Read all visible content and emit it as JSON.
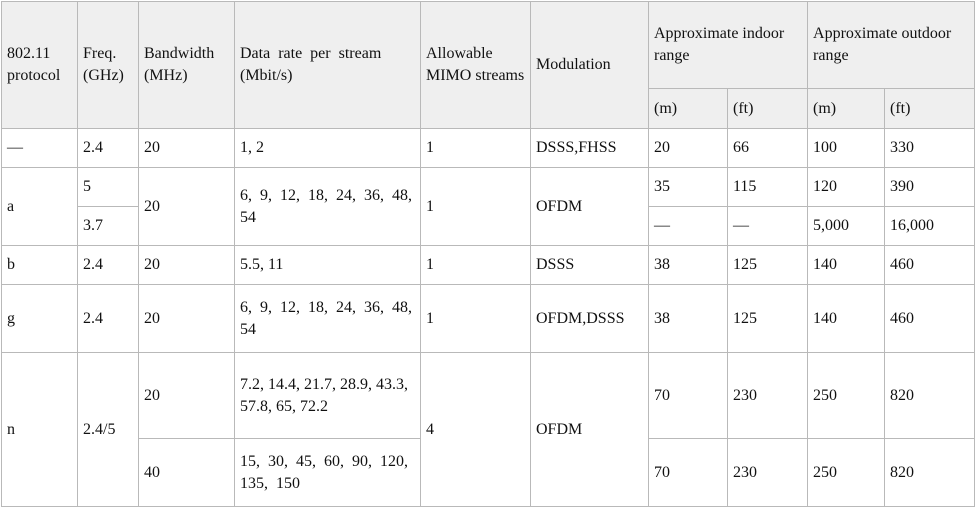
{
  "headers": {
    "protocol": "802.11 protocol",
    "freq": "Freq. (GHz)",
    "bandwidth": "Bandwidth (MHz)",
    "data_rate": "Data rate per stream (Mbit/s)",
    "mimo": "Allowable MIMO streams",
    "modulation": "Modulation",
    "indoor": "Approximate indoor range",
    "outdoor": "Approximate outdoor range",
    "unit_m": "(m)",
    "unit_ft": "(ft)"
  },
  "rows": {
    "legacy": {
      "protocol": "—",
      "freq": "2.4",
      "bandwidth": "20",
      "data_rate": "1, 2",
      "mimo": "1",
      "modulation": "DSSS,FHSS",
      "in_m": "20",
      "in_ft": "66",
      "out_m": "100",
      "out_ft": "330"
    },
    "a": {
      "protocol": "a",
      "freq_1": "5",
      "freq_2": "3.7",
      "bandwidth": "20",
      "data_rate": "6, 9, 12, 18, 24, 36, 48, 54",
      "mimo": "1",
      "modulation": "OFDM",
      "in_m_1": "35",
      "in_ft_1": "115",
      "out_m_1": "120",
      "out_ft_1": "390",
      "in_m_2": "—",
      "in_ft_2": "—",
      "out_m_2": "5,000",
      "out_ft_2": "16,000"
    },
    "b": {
      "protocol": "b",
      "freq": "2.4",
      "bandwidth": "20",
      "data_rate": "5.5, 11",
      "mimo": "1",
      "modulation": "DSSS",
      "in_m": "38",
      "in_ft": "125",
      "out_m": "140",
      "out_ft": "460"
    },
    "g": {
      "protocol": "g",
      "freq": "2.4",
      "bandwidth": "20",
      "data_rate": "6, 9, 12, 18, 24, 36, 48, 54",
      "mimo": "1",
      "modulation": "OFDM,DSSS",
      "in_m": "38",
      "in_ft": "125",
      "out_m": "140",
      "out_ft": "460"
    },
    "n": {
      "protocol": "n",
      "freq": "2.4/5",
      "mimo": "4",
      "modulation": "OFDM",
      "bw_1": "20",
      "rate_1": "7.2, 14.4, 21.7, 28.9, 43.3, 57.8, 65, 72.2",
      "in_m_1": "70",
      "in_ft_1": "230",
      "out_m_1": "250",
      "out_ft_1": "820",
      "bw_2": "40",
      "rate_2": "15, 30, 45, 60, 90, 120, 135, 150",
      "in_m_2": "70",
      "in_ft_2": "230",
      "out_m_2": "250",
      "out_ft_2": "820"
    }
  }
}
